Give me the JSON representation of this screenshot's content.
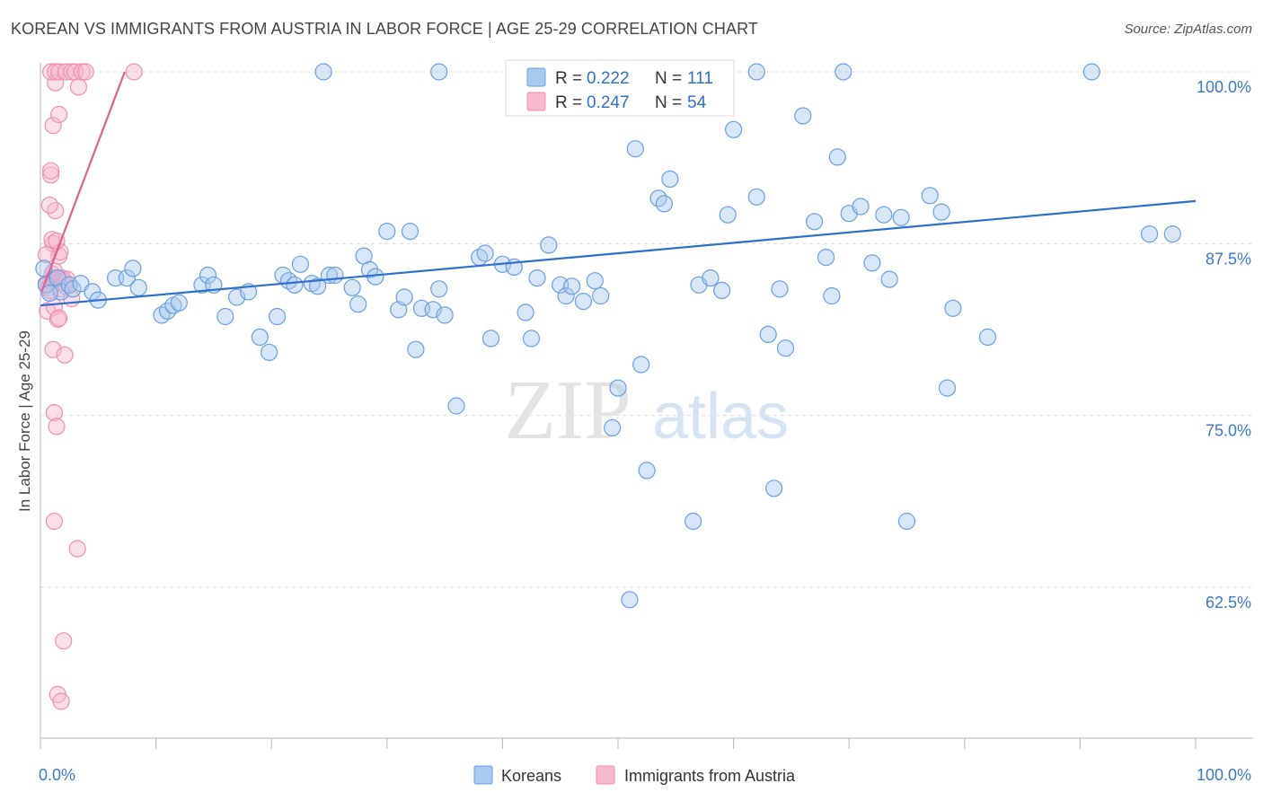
{
  "title": "KOREAN VS IMMIGRANTS FROM AUSTRIA IN LABOR FORCE | AGE 25-29 CORRELATION CHART",
  "source": "Source: ZipAtlas.com",
  "watermark": {
    "zip": "ZIP",
    "atlas": "atlas"
  },
  "legend_box": [
    {
      "r_label": "R =",
      "r_value": "0.222",
      "n_label": "N =",
      "n_value": "111"
    },
    {
      "r_label": "R =",
      "r_value": "0.247",
      "n_label": "N =",
      "n_value": "54"
    }
  ],
  "chart_data": {
    "type": "scatter",
    "title": "KOREAN VS IMMIGRANTS FROM AUSTRIA IN LABOR FORCE | AGE 25-29 CORRELATION CHART",
    "xlabel": "",
    "ylabel": "In Labor Force | Age 25-29",
    "xlim": [
      0,
      100
    ],
    "ylim": [
      52,
      102
    ],
    "x_tick_labels": [
      "0.0%",
      "100.0%"
    ],
    "y_ticks": [
      62.5,
      75.0,
      87.5,
      100.0
    ],
    "y_tick_labels": [
      "62.5%",
      "75.0%",
      "87.5%",
      "100.0%"
    ],
    "grid": true,
    "legend_position": "bottom-center",
    "series": [
      {
        "name": "Koreans",
        "color": "#6a9fe0",
        "fill": "#a9c8ef",
        "trend_color": "#2f6fcd",
        "r": 0.222,
        "n": 111,
        "trend": {
          "x": [
            0,
            100
          ],
          "y": [
            83.0,
            90.6
          ]
        },
        "points": [
          [
            0.5,
            84.5
          ],
          [
            1.5,
            85
          ],
          [
            1.8,
            84
          ],
          [
            2.5,
            84.5
          ],
          [
            2.8,
            84.2
          ],
          [
            3.5,
            84.6
          ],
          [
            4.5,
            84
          ],
          [
            5,
            83.4
          ],
          [
            6.5,
            85
          ],
          [
            7.5,
            85
          ],
          [
            8,
            85.7
          ],
          [
            8.5,
            84.3
          ],
          [
            10.5,
            82.3
          ],
          [
            11,
            82.6
          ],
          [
            11.5,
            83
          ],
          [
            12,
            83.2
          ],
          [
            14,
            84.5
          ],
          [
            14.5,
            85.2
          ],
          [
            15,
            84.5
          ],
          [
            16,
            82.2
          ],
          [
            17,
            83.6
          ],
          [
            18,
            84
          ],
          [
            19,
            80.7
          ],
          [
            19.8,
            79.6
          ],
          [
            20.5,
            82.2
          ],
          [
            21,
            85.2
          ],
          [
            21.5,
            84.8
          ],
          [
            22,
            84.5
          ],
          [
            22.5,
            86
          ],
          [
            23.5,
            84.6
          ],
          [
            24,
            84.4
          ],
          [
            25,
            85.2
          ],
          [
            25.5,
            85.2
          ],
          [
            27,
            84.3
          ],
          [
            27.5,
            83.1
          ],
          [
            28,
            86.6
          ],
          [
            28.5,
            85.6
          ],
          [
            29,
            85.1
          ],
          [
            30,
            88.4
          ],
          [
            31,
            82.7
          ],
          [
            31.5,
            83.6
          ],
          [
            32,
            88.4
          ],
          [
            32.5,
            79.8
          ],
          [
            33,
            82.8
          ],
          [
            34,
            82.7
          ],
          [
            34.5,
            84.2
          ],
          [
            35,
            82.3
          ],
          [
            36,
            75.7
          ],
          [
            38,
            86.5
          ],
          [
            38.5,
            86.8
          ],
          [
            39,
            80.6
          ],
          [
            40,
            86
          ],
          [
            41,
            85.8
          ],
          [
            42,
            82.5
          ],
          [
            42.5,
            80.6
          ],
          [
            43,
            85
          ],
          [
            44,
            87.4
          ],
          [
            45,
            84.5
          ],
          [
            45.5,
            83.7
          ],
          [
            46,
            84.4
          ],
          [
            47,
            83.3
          ],
          [
            48,
            84.8
          ],
          [
            48.5,
            83.7
          ],
          [
            49.5,
            74.1
          ],
          [
            50,
            77
          ],
          [
            51,
            61.6
          ],
          [
            52,
            78.7
          ],
          [
            51.5,
            94.4
          ],
          [
            52.5,
            71
          ],
          [
            53.5,
            90.8
          ],
          [
            54,
            90.4
          ],
          [
            54.5,
            92.2
          ],
          [
            56.5,
            67.3
          ],
          [
            57,
            84.5
          ],
          [
            58,
            85
          ],
          [
            59,
            84.1
          ],
          [
            59.5,
            89.6
          ],
          [
            60,
            95.8
          ],
          [
            62,
            90.9
          ],
          [
            63,
            80.9
          ],
          [
            63.5,
            69.7
          ],
          [
            64,
            84.2
          ],
          [
            64.5,
            79.9
          ],
          [
            66,
            96.8
          ],
          [
            67,
            89.1
          ],
          [
            68,
            86.5
          ],
          [
            68.5,
            83.7
          ],
          [
            69,
            93.8
          ],
          [
            70,
            89.7
          ],
          [
            71,
            90.2
          ],
          [
            72,
            86.1
          ],
          [
            73,
            89.6
          ],
          [
            73.5,
            84.9
          ],
          [
            74.5,
            89.4
          ],
          [
            75,
            67.3
          ],
          [
            77,
            91
          ],
          [
            78,
            89.8
          ],
          [
            78.5,
            77
          ],
          [
            79,
            82.8
          ],
          [
            82,
            80.7
          ],
          [
            96,
            88.2
          ],
          [
            98,
            88.2
          ],
          [
            24.5,
            100
          ],
          [
            34.5,
            100
          ],
          [
            46.5,
            100
          ],
          [
            47.5,
            100
          ],
          [
            51.5,
            100
          ],
          [
            62,
            100
          ],
          [
            69.5,
            100
          ],
          [
            91,
            100
          ],
          [
            0.3,
            85.7
          ],
          [
            0.8,
            83.9
          ]
        ]
      },
      {
        "name": "Immigrants from Austria",
        "color": "#ef8fb0",
        "fill": "#f7b9cd",
        "trend_color": "#e25f8e",
        "r": 0.247,
        "n": 54,
        "trend": {
          "x": [
            0.1,
            7.3
          ],
          "y": [
            84.0,
            100.0
          ]
        },
        "points": [
          [
            0.5,
            84.6
          ],
          [
            0.7,
            84.3
          ],
          [
            0.8,
            84.1
          ],
          [
            0.9,
            84.8
          ],
          [
            1,
            85.3
          ],
          [
            1.1,
            84.9
          ],
          [
            1.2,
            85.5
          ],
          [
            1.3,
            84.8
          ],
          [
            1.4,
            85
          ],
          [
            1.5,
            84.7
          ],
          [
            1.6,
            86.6
          ],
          [
            1.7,
            86.9
          ],
          [
            1.8,
            84.2
          ],
          [
            1.9,
            85
          ],
          [
            2,
            84.8
          ],
          [
            2.1,
            84.6
          ],
          [
            2.2,
            84.4
          ],
          [
            2.3,
            84.9
          ],
          [
            2.5,
            84.5
          ],
          [
            0.6,
            82.6
          ],
          [
            1.2,
            82.9
          ],
          [
            1.5,
            82
          ],
          [
            1.6,
            82.1
          ],
          [
            1.1,
            87.5
          ],
          [
            1,
            87.8
          ],
          [
            1.4,
            87.7
          ],
          [
            1.3,
            89.9
          ],
          [
            0.8,
            90.3
          ],
          [
            0.9,
            92.5
          ],
          [
            0.9,
            92.8
          ],
          [
            1.1,
            96.1
          ],
          [
            1.6,
            96.9
          ],
          [
            1.3,
            99.2
          ],
          [
            3.3,
            98.9
          ],
          [
            1.1,
            79.8
          ],
          [
            1.2,
            75.2
          ],
          [
            1.4,
            74.2
          ],
          [
            2.1,
            79.4
          ],
          [
            2.7,
            83.5
          ],
          [
            1.2,
            67.3
          ],
          [
            3.2,
            65.3
          ],
          [
            2,
            58.6
          ],
          [
            1.5,
            54.7
          ],
          [
            1.8,
            54.2
          ],
          [
            0.9,
            100
          ],
          [
            1.3,
            100
          ],
          [
            1.6,
            100
          ],
          [
            2.2,
            100
          ],
          [
            2.7,
            100
          ],
          [
            3,
            100
          ],
          [
            3.6,
            100
          ],
          [
            3.9,
            100
          ],
          [
            8.1,
            100
          ],
          [
            0.5,
            86.7
          ]
        ]
      }
    ]
  }
}
